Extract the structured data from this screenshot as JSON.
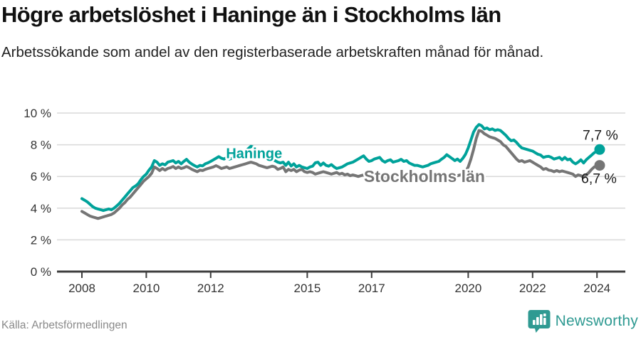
{
  "header": {
    "title": "Högre arbetslöshet i Haninge än i Stockholms län",
    "subtitle": "Arbetssökande som andel av den registerbaserade arbetskraften månad för månad."
  },
  "chart_data": {
    "type": "line",
    "unit": "%",
    "x_start_year": 2008,
    "months_per_point": 1,
    "ylim": [
      0,
      10
    ],
    "ytick_values": [
      0,
      2,
      4,
      6,
      8,
      10
    ],
    "ytick_labels": [
      "0 %",
      "2 %",
      "4 %",
      "6 %",
      "8 %",
      "10 %"
    ],
    "xtick_years": [
      2008,
      2010,
      2012,
      2015,
      2017,
      2020,
      2022,
      2024
    ],
    "grid": true,
    "colors": {
      "grid": "#d9d9d9",
      "axis": "#3d3d3d",
      "tick_text": "#333333",
      "value_label": "#1a1a1a"
    },
    "series": [
      {
        "name": "Stockholms län",
        "color": "#757575",
        "end_label": "6,7 %",
        "inline_label": {
          "text": "Stockholms län",
          "year": 2018.64,
          "value": 5.65,
          "font_size": 23
        },
        "values": [
          3.8,
          3.7,
          3.6,
          3.5,
          3.45,
          3.4,
          3.35,
          3.4,
          3.45,
          3.5,
          3.55,
          3.6,
          3.7,
          3.85,
          4.0,
          4.2,
          4.35,
          4.55,
          4.7,
          4.9,
          5.1,
          5.3,
          5.5,
          5.7,
          5.85,
          6.0,
          6.2,
          6.6,
          6.5,
          6.37,
          6.5,
          6.4,
          6.5,
          6.55,
          6.63,
          6.5,
          6.6,
          6.5,
          6.55,
          6.63,
          6.55,
          6.45,
          6.37,
          6.3,
          6.4,
          6.37,
          6.45,
          6.5,
          6.55,
          6.6,
          6.68,
          6.6,
          6.5,
          6.55,
          6.6,
          6.5,
          6.55,
          6.6,
          6.65,
          6.7,
          6.75,
          6.8,
          6.85,
          6.9,
          6.85,
          6.8,
          6.7,
          6.65,
          6.6,
          6.55,
          6.6,
          6.65,
          6.6,
          6.45,
          6.5,
          6.6,
          6.3,
          6.45,
          6.37,
          6.45,
          6.3,
          6.4,
          6.45,
          6.3,
          6.25,
          6.3,
          6.25,
          6.15,
          6.2,
          6.25,
          6.3,
          6.25,
          6.2,
          6.15,
          6.2,
          6.25,
          6.15,
          6.2,
          6.1,
          6.15,
          6.05,
          6.1,
          6.05,
          6.0,
          6.05,
          6.1,
          6.05,
          6.0,
          6.05,
          6.1,
          6.05,
          6.0,
          5.95,
          5.9,
          5.95,
          6.0,
          5.95,
          5.9,
          5.85,
          5.9,
          5.95,
          5.9,
          5.85,
          5.8,
          5.85,
          5.8,
          5.75,
          5.8,
          5.85,
          5.9,
          5.85,
          5.9,
          5.95,
          6.0,
          6.05,
          6.0,
          6.05,
          6.1,
          6.05,
          6.0,
          6.05,
          6.1,
          6.15,
          6.3,
          6.6,
          7.1,
          7.7,
          8.4,
          8.9,
          8.85,
          8.7,
          8.6,
          8.5,
          8.45,
          8.4,
          8.3,
          8.2,
          8.0,
          7.9,
          7.7,
          7.5,
          7.3,
          7.1,
          6.95,
          7.0,
          6.9,
          6.95,
          7.0,
          6.9,
          6.8,
          6.7,
          6.6,
          6.45,
          6.5,
          6.4,
          6.37,
          6.3,
          6.37,
          6.3,
          6.35,
          6.3,
          6.25,
          6.2,
          6.15,
          6.0,
          6.1,
          6.05,
          5.95,
          6.1,
          6.25,
          6.45,
          6.6,
          6.65,
          6.7
        ]
      },
      {
        "name": "Haninge",
        "color": "#00a29a",
        "end_label": "7,7 %",
        "inline_label": {
          "text": "Haninge",
          "year": 2013.35,
          "value": 7.15,
          "font_size": 20
        },
        "values": [
          4.6,
          4.5,
          4.4,
          4.25,
          4.1,
          4.0,
          3.95,
          3.9,
          3.85,
          3.9,
          3.95,
          3.9,
          4.0,
          4.15,
          4.3,
          4.5,
          4.7,
          4.9,
          5.1,
          5.3,
          5.4,
          5.55,
          5.8,
          6.0,
          6.15,
          6.4,
          6.6,
          7.0,
          6.9,
          6.7,
          6.8,
          6.73,
          6.9,
          6.95,
          7.0,
          6.85,
          6.95,
          6.8,
          6.95,
          7.08,
          6.9,
          6.78,
          6.68,
          6.6,
          6.7,
          6.67,
          6.8,
          6.86,
          6.95,
          7.05,
          7.15,
          7.25,
          7.15,
          7.1,
          7.2,
          7.1,
          7.15,
          7.2,
          7.3,
          7.4,
          7.5,
          7.6,
          7.75,
          7.9,
          7.85,
          7.7,
          7.55,
          7.45,
          7.3,
          7.2,
          7.1,
          7.05,
          7.0,
          6.9,
          6.85,
          6.9,
          6.7,
          6.9,
          6.66,
          6.8,
          6.6,
          6.7,
          6.6,
          6.55,
          6.5,
          6.6,
          6.65,
          6.86,
          6.9,
          6.7,
          6.85,
          6.7,
          6.65,
          6.75,
          6.6,
          6.5,
          6.55,
          6.6,
          6.7,
          6.8,
          6.85,
          6.9,
          7.0,
          7.1,
          7.2,
          7.3,
          7.1,
          6.95,
          7.0,
          7.1,
          7.15,
          7.2,
          7.0,
          6.9,
          7.0,
          7.05,
          6.9,
          6.95,
          7.0,
          7.08,
          6.95,
          7.0,
          6.85,
          6.77,
          6.7,
          6.7,
          6.65,
          6.6,
          6.65,
          6.7,
          6.8,
          6.85,
          6.9,
          6.95,
          7.08,
          7.2,
          7.37,
          7.25,
          7.13,
          7.0,
          7.1,
          6.95,
          7.15,
          7.4,
          7.8,
          8.3,
          8.8,
          9.1,
          9.28,
          9.2,
          9.0,
          9.06,
          8.95,
          9.0,
          8.9,
          8.95,
          8.9,
          8.75,
          8.6,
          8.4,
          8.25,
          8.3,
          8.15,
          7.95,
          7.8,
          7.75,
          7.7,
          7.65,
          7.6,
          7.5,
          7.4,
          7.35,
          7.2,
          7.25,
          7.27,
          7.2,
          7.1,
          7.15,
          7.2,
          7.05,
          7.2,
          7.05,
          7.1,
          6.9,
          6.8,
          6.9,
          7.05,
          6.85,
          7.05,
          7.2,
          7.35,
          7.5,
          7.6,
          7.7
        ]
      }
    ]
  },
  "footer": {
    "source": "Källa: Arbetsförmedlingen",
    "brand": "Newsworthy",
    "brand_color": "#2f9a92",
    "brand_icon": "bar-chart-speech-bubble-icon"
  }
}
